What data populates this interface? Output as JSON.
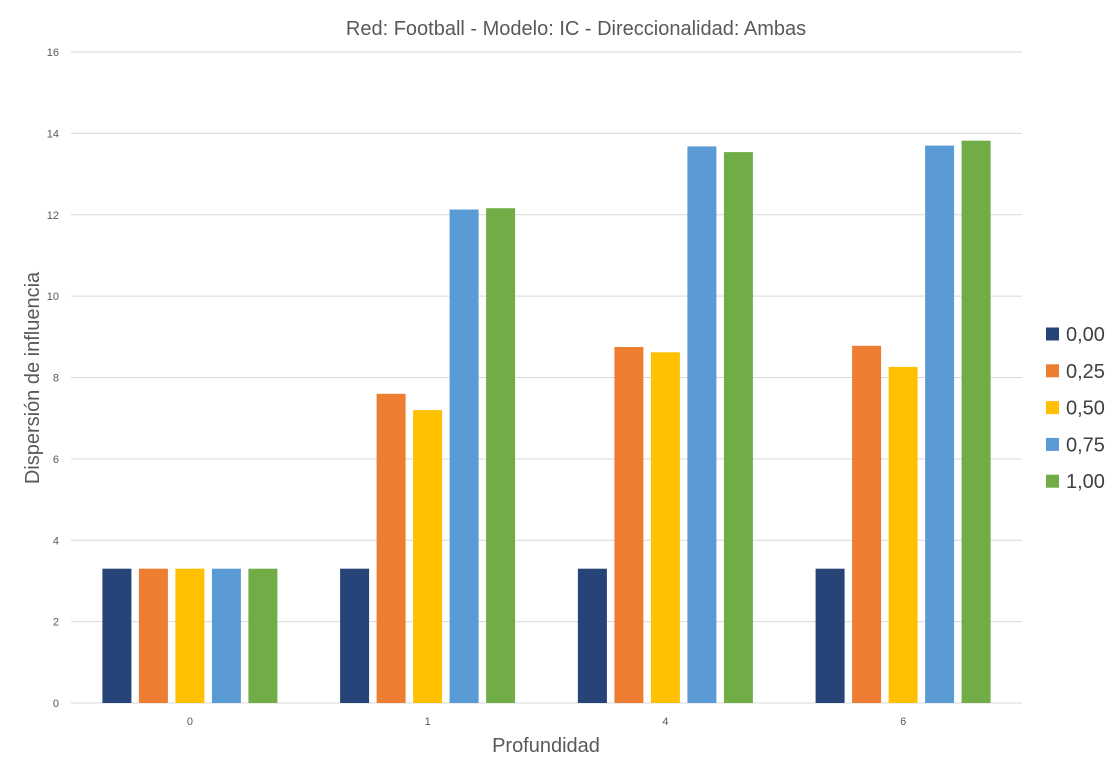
{
  "chart_data": {
    "type": "bar",
    "title": "Red: Football - Modelo: IC - Direccionalidad: Ambas",
    "xlabel": "Profundidad",
    "ylabel": "Dispersión de influencia",
    "categories": [
      "0",
      "1",
      "4",
      "6"
    ],
    "ylim": [
      0,
      16
    ],
    "yticks": [
      0,
      2,
      4,
      6,
      8,
      10,
      12,
      14,
      16
    ],
    "grid": true,
    "legend_position": "right",
    "series": [
      {
        "name": "0,00",
        "color": "#264478",
        "values": [
          3.3,
          3.3,
          3.3,
          3.3
        ]
      },
      {
        "name": "0,25",
        "color": "#ED7D31",
        "values": [
          3.3,
          7.6,
          8.75,
          8.78
        ]
      },
      {
        "name": "0,50",
        "color": "#FFC000",
        "values": [
          3.3,
          7.2,
          8.62,
          8.26
        ]
      },
      {
        "name": "0,75",
        "color": "#5B9BD5",
        "values": [
          3.3,
          12.13,
          13.68,
          13.7
        ]
      },
      {
        "name": "1,00",
        "color": "#70AD47",
        "values": [
          3.3,
          12.16,
          13.54,
          13.82
        ]
      }
    ]
  }
}
